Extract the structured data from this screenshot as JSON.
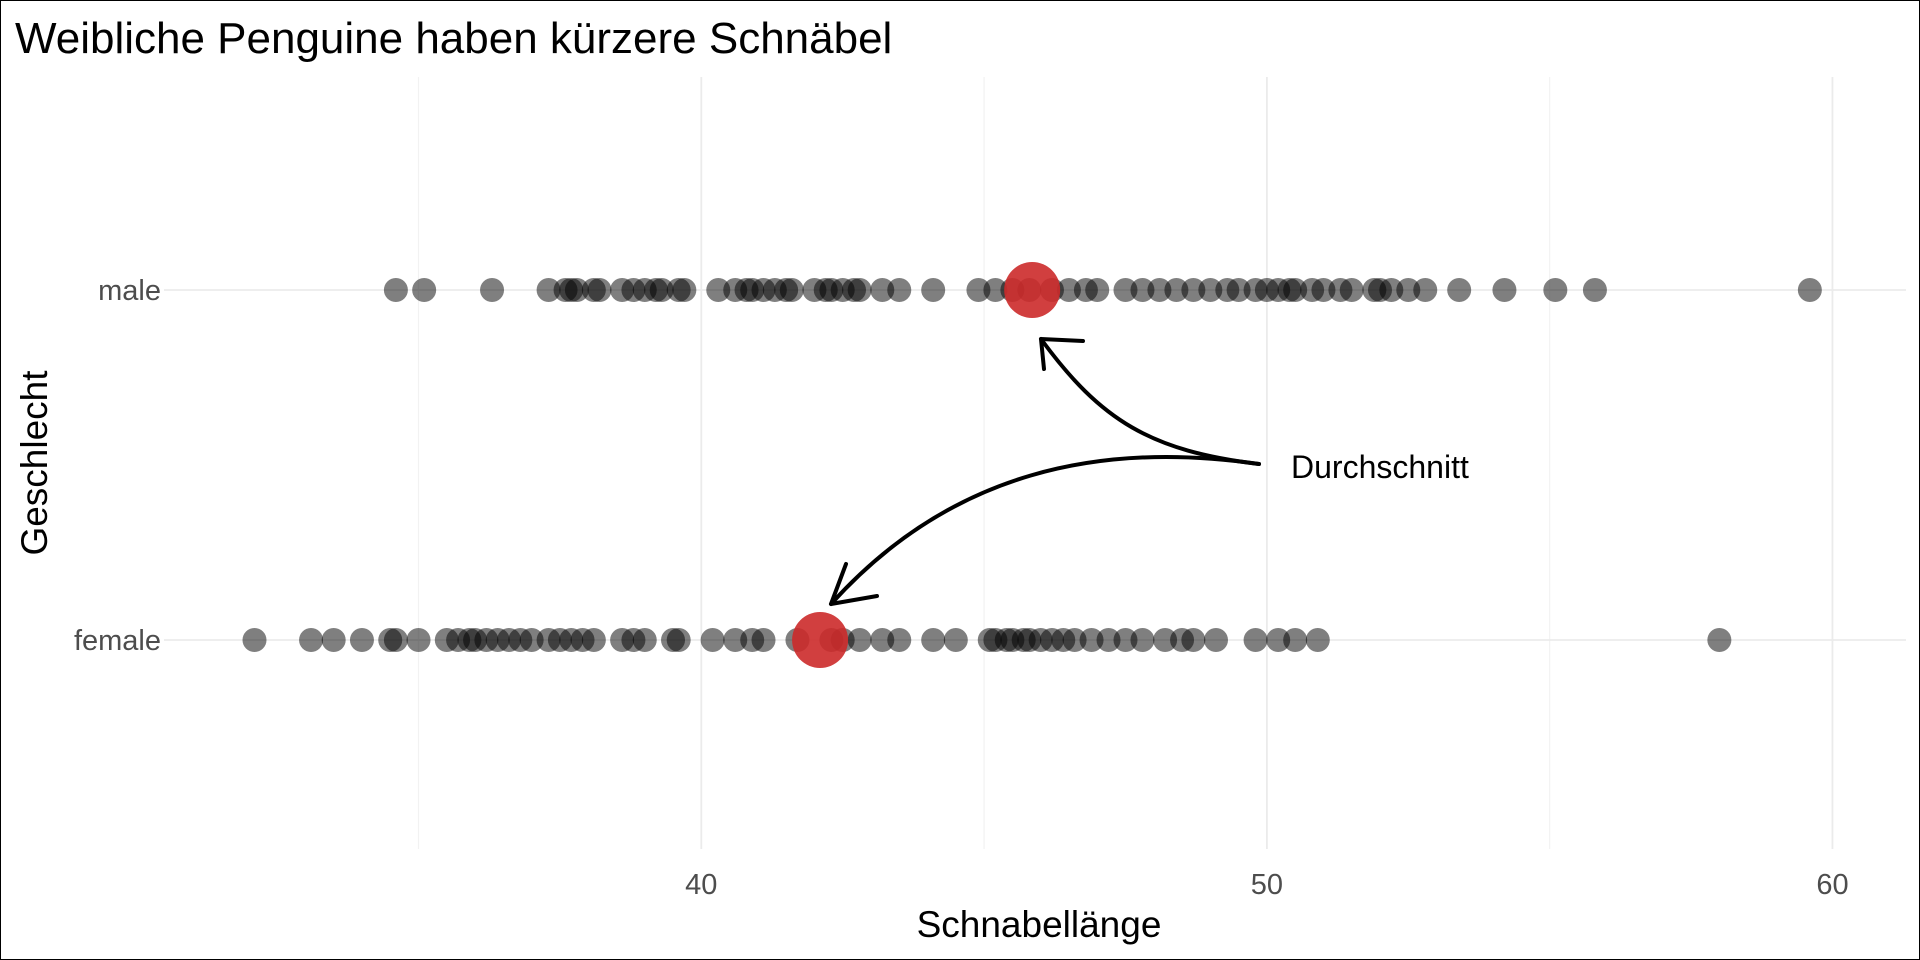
{
  "chart_data": {
    "type": "scatter",
    "title": "Weibliche Penguine haben kürzere Schnäbel",
    "xlabel": "Schnabellänge",
    "ylabel": "Geschlecht",
    "xlim": [
      30.5,
      61.3
    ],
    "x_ticks": [
      40,
      50,
      60
    ],
    "x_minor_ticks": [
      35,
      45,
      55
    ],
    "categories": [
      "female",
      "male"
    ],
    "grid": true,
    "point_color": "#000000",
    "point_opacity": 0.5,
    "mean_color": "#cc2a2a",
    "series": [
      {
        "name": "male",
        "x": [
          34.6,
          35.1,
          36.3,
          37.3,
          37.6,
          37.7,
          37.8,
          38.1,
          38.2,
          38.6,
          38.8,
          39.0,
          39.2,
          39.3,
          39.6,
          39.7,
          40.3,
          40.6,
          40.8,
          40.9,
          41.1,
          41.3,
          41.5,
          41.6,
          42.0,
          42.2,
          42.3,
          42.5,
          42.7,
          42.8,
          43.2,
          43.5,
          44.1,
          44.9,
          45.2,
          45.5,
          45.8,
          46.2,
          46.5,
          46.8,
          47.0,
          47.5,
          47.8,
          48.1,
          48.4,
          48.7,
          49.0,
          49.3,
          49.5,
          49.8,
          50.0,
          50.2,
          50.4,
          50.5,
          50.8,
          51.0,
          51.3,
          51.5,
          51.9,
          52.0,
          52.2,
          52.5,
          52.8,
          53.4,
          54.2,
          55.1,
          55.8,
          59.6
        ],
        "mean": 45.85
      },
      {
        "name": "female",
        "x": [
          32.1,
          33.1,
          33.5,
          34.0,
          34.5,
          34.6,
          35.0,
          35.5,
          35.7,
          35.9,
          36.0,
          36.2,
          36.4,
          36.6,
          36.8,
          37.0,
          37.3,
          37.5,
          37.7,
          37.9,
          38.1,
          38.6,
          38.8,
          39.0,
          39.5,
          39.6,
          40.2,
          40.6,
          40.9,
          41.1,
          41.7,
          42.3,
          42.5,
          42.8,
          43.2,
          43.5,
          44.1,
          44.5,
          45.1,
          45.2,
          45.4,
          45.5,
          45.7,
          45.8,
          46.0,
          46.2,
          46.4,
          46.6,
          46.9,
          47.2,
          47.5,
          47.8,
          48.2,
          48.5,
          48.7,
          49.1,
          49.8,
          50.2,
          50.5,
          50.9,
          58.0
        ],
        "mean": 42.1
      }
    ],
    "annotation": {
      "text": "Durchschnitt",
      "x": 50.2,
      "y": "between"
    }
  }
}
